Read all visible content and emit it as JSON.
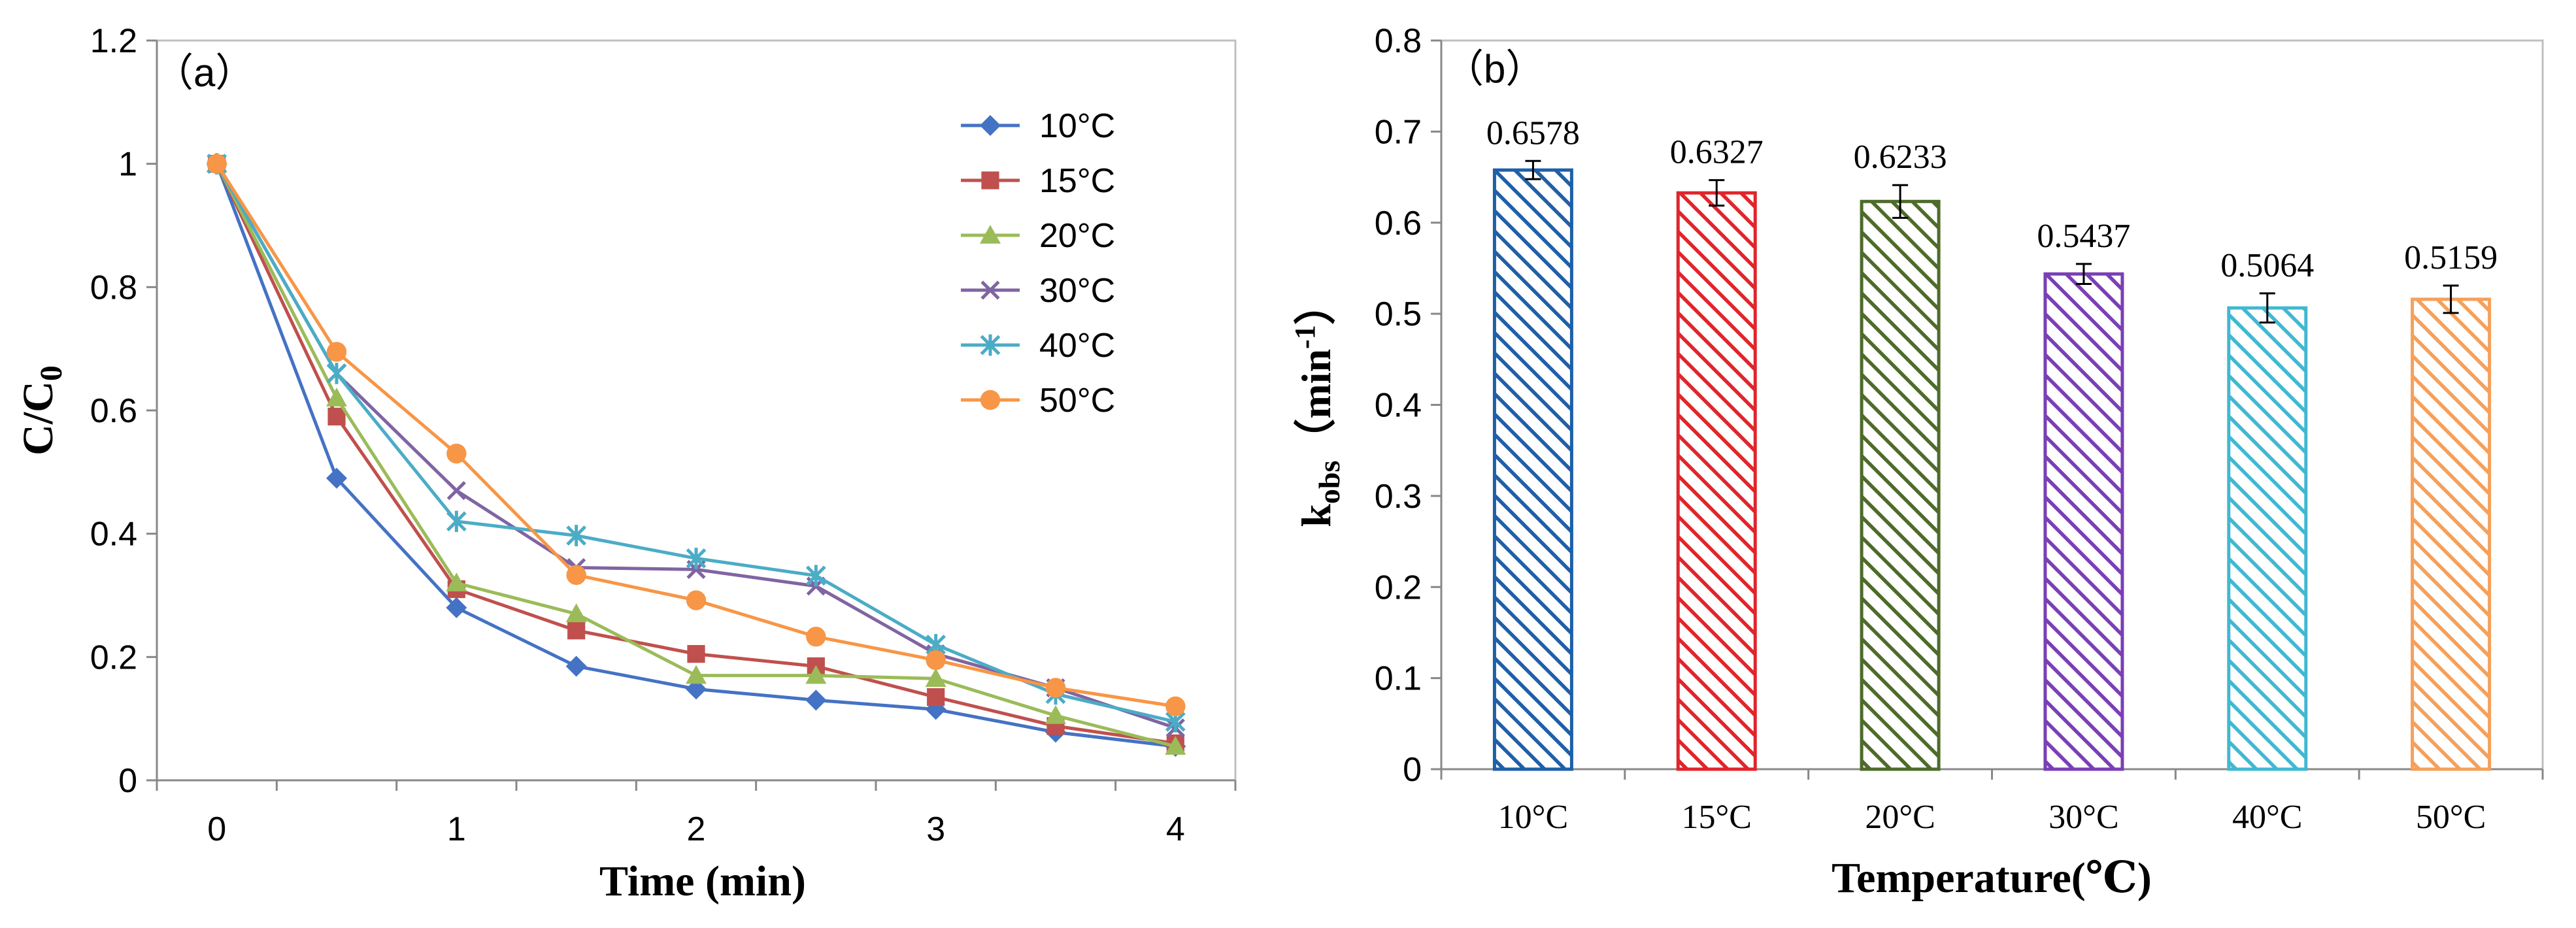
{
  "chart_data": [
    {
      "type": "line",
      "panel_label": "（a）",
      "title": "",
      "xlabel": "Time (min)",
      "ylabel": {
        "main": "C/C",
        "sub": "0"
      },
      "xlim": [
        -0.25,
        4.25
      ],
      "ylim": [
        0,
        1.2
      ],
      "xticks": [
        0,
        1,
        2,
        3,
        4
      ],
      "xtick_labels": [
        "0",
        "1",
        "2",
        "3",
        "4"
      ],
      "yticks": [
        0,
        0.2,
        0.4,
        0.6,
        0.8,
        1,
        1.2
      ],
      "ytick_labels": [
        "0",
        "0.2",
        "0.4",
        "0.6",
        "0.8",
        "1",
        "1.2"
      ],
      "grid": false,
      "legend_position": "top-right",
      "x": [
        0,
        0.5,
        1,
        1.5,
        2,
        2.5,
        3,
        3.5,
        4
      ],
      "series": [
        {
          "name": "10°C",
          "color": "#4472c4",
          "marker": "diamond",
          "values": [
            1.0,
            0.49,
            0.28,
            0.185,
            0.148,
            0.13,
            0.115,
            0.078,
            0.055
          ]
        },
        {
          "name": "15°C",
          "color": "#c0504d",
          "marker": "square",
          "values": [
            1.0,
            0.59,
            0.31,
            0.243,
            0.205,
            0.185,
            0.135,
            0.088,
            0.06
          ]
        },
        {
          "name": "20°C",
          "color": "#9bbb59",
          "marker": "triangle",
          "values": [
            1.0,
            0.62,
            0.32,
            0.27,
            0.17,
            0.17,
            0.165,
            0.105,
            0.055
          ]
        },
        {
          "name": "30°C",
          "color": "#8064a2",
          "marker": "x",
          "values": [
            1.0,
            0.66,
            0.47,
            0.345,
            0.342,
            0.315,
            0.205,
            0.15,
            0.085
          ]
        },
        {
          "name": "40°C",
          "color": "#4bacc6",
          "marker": "asterisk",
          "values": [
            1.0,
            0.66,
            0.42,
            0.397,
            0.36,
            0.332,
            0.22,
            0.14,
            0.095
          ]
        },
        {
          "name": "50°C",
          "color": "#f79646",
          "marker": "circle",
          "values": [
            1.0,
            0.695,
            0.53,
            0.333,
            0.292,
            0.233,
            0.195,
            0.15,
            0.12
          ]
        }
      ]
    },
    {
      "type": "bar",
      "panel_label": "（b）",
      "title": "",
      "xlabel": "Temperature(℃)",
      "ylabel": {
        "main": "k",
        "sub": "obs",
        "rest": "（min",
        "sup": "-1",
        "close": "）"
      },
      "ylim": [
        0,
        0.8
      ],
      "yticks": [
        0,
        0.1,
        0.2,
        0.3,
        0.4,
        0.5,
        0.6,
        0.7,
        0.8
      ],
      "ytick_labels": [
        "0",
        "0.1",
        "0.2",
        "0.3",
        "0.4",
        "0.5",
        "0.6",
        "0.7",
        "0.8"
      ],
      "grid": false,
      "categories": [
        "10°C",
        "15°C",
        "20°C",
        "30°C",
        "40°C",
        "50°C"
      ],
      "values": [
        0.6578,
        0.6327,
        0.6233,
        0.5437,
        0.5064,
        0.5159
      ],
      "value_labels": [
        "0.6578",
        "0.6327",
        "0.6233",
        "0.5437",
        "0.5064",
        "0.5159"
      ],
      "errors": [
        0.01,
        0.014,
        0.018,
        0.011,
        0.016,
        0.015
      ],
      "colors": [
        "#1f5fa8",
        "#e0252b",
        "#4e6b2a",
        "#7a3fb5",
        "#41b8d2",
        "#f5a05a"
      ]
    }
  ]
}
